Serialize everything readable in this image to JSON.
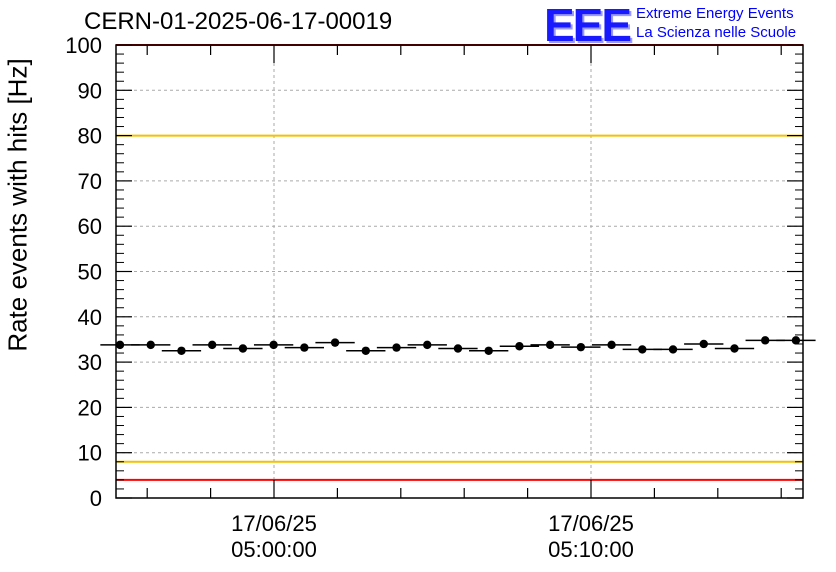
{
  "chart_data": {
    "type": "scatter",
    "title": "CERN-01-2025-06-17-00019",
    "ylabel": "Rate events with hits [Hz]",
    "ylim": [
      0,
      100
    ],
    "yticks": [
      "0",
      "10",
      "20",
      "30",
      "40",
      "50",
      "60",
      "70",
      "80",
      "90",
      "100"
    ],
    "xticks": [
      {
        "date": "17/06/25",
        "time": "05:00:00"
      },
      {
        "date": "17/06/25",
        "time": "05:10:00"
      }
    ],
    "grid": true,
    "series": [
      {
        "name": "rate",
        "x_minutes_after_04_55": [
          0,
          1,
          2,
          3,
          4,
          5,
          6,
          7,
          8,
          9,
          10,
          11,
          12,
          13,
          14,
          15,
          16,
          17,
          18,
          19,
          20,
          21,
          22
        ],
        "values": [
          33.8,
          33.8,
          32.5,
          33.8,
          33.0,
          33.8,
          33.2,
          34.3,
          32.5,
          33.2,
          33.8,
          33.0,
          32.5,
          33.5,
          33.8,
          33.3,
          33.8,
          32.8,
          32.8,
          34.0,
          33.0,
          34.8,
          34.8
        ]
      }
    ],
    "reference_lines": [
      {
        "value": 100,
        "color": "#ff0000"
      },
      {
        "value": 80,
        "color": "#f2c200"
      },
      {
        "value": 8,
        "color": "#f2c200"
      },
      {
        "value": 4,
        "color": "#ff0000"
      }
    ]
  },
  "logo": {
    "mark": "EEE",
    "line1": "Extreme Energy Events",
    "line2": "La Scienza nelle Scuole"
  }
}
